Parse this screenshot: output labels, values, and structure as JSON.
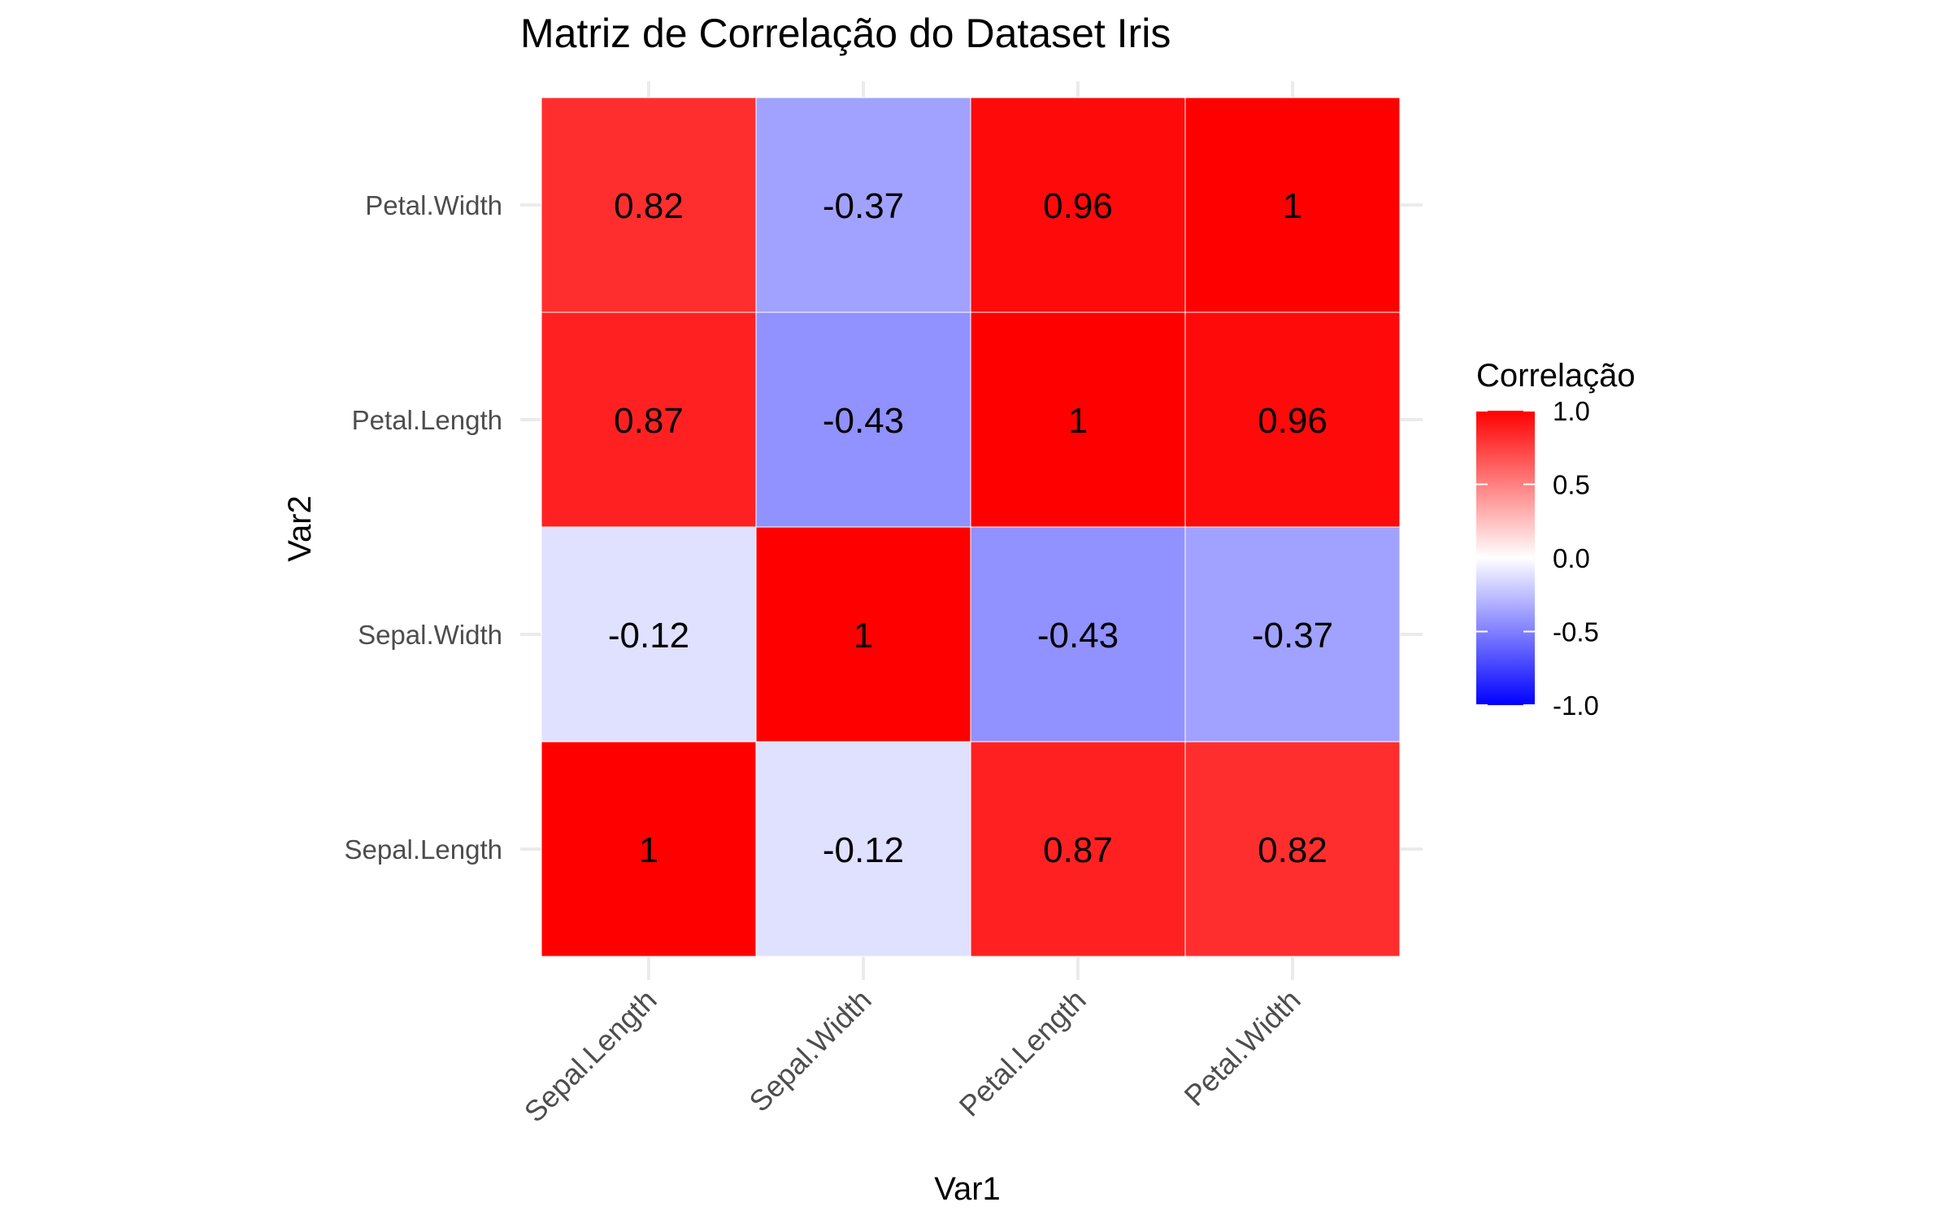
{
  "chart_data": {
    "type": "heatmap",
    "title": "Matriz de Correlação do Dataset Iris",
    "xlabel": "Var1",
    "ylabel": "Var2",
    "x_categories": [
      "Sepal.Length",
      "Sepal.Width",
      "Petal.Length",
      "Petal.Width"
    ],
    "y_categories": [
      "Sepal.Length",
      "Sepal.Width",
      "Petal.Length",
      "Petal.Width"
    ],
    "values": [
      [
        1,
        -0.12,
        0.87,
        0.82
      ],
      [
        -0.12,
        1,
        -0.43,
        -0.37
      ],
      [
        0.87,
        -0.43,
        1,
        0.96
      ],
      [
        0.82,
        -0.37,
        0.96,
        1
      ]
    ],
    "cell_labels": [
      [
        "1",
        "-0.12",
        "0.87",
        "0.82"
      ],
      [
        "-0.12",
        "1",
        "-0.43",
        "-0.37"
      ],
      [
        "0.87",
        "-0.43",
        "1",
        "0.96"
      ],
      [
        "0.82",
        "-0.37",
        "0.96",
        "1"
      ]
    ],
    "legend": {
      "title": "Correlação",
      "position": "right",
      "range": [
        -1,
        1
      ],
      "ticks": [
        1.0,
        0.5,
        0.0,
        -0.5,
        -1.0
      ],
      "tick_labels": [
        "1.0",
        "0.5",
        "0.0",
        "-0.5",
        "-1.0"
      ],
      "low_color": "#0000ff",
      "mid_color": "#ffffff",
      "high_color": "#ff0000"
    },
    "grid": true
  }
}
